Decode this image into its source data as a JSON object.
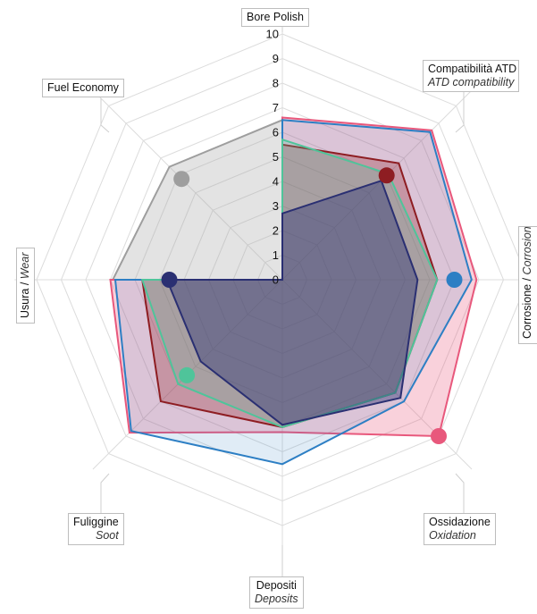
{
  "chart_data": {
    "type": "radar",
    "axes": [
      {
        "label": "Bore Polish",
        "sublabel": ""
      },
      {
        "label": "Compatibilità ATD",
        "sublabel": "ATD compatibility"
      },
      {
        "label": "Corrosione",
        "sublabel": "Corrosion"
      },
      {
        "label": "Ossidazione",
        "sublabel": "Oxidation"
      },
      {
        "label": "Depositi",
        "sublabel": "Deposits"
      },
      {
        "label": "Fuliggine",
        "sublabel": "Soot"
      },
      {
        "label": "Usura",
        "sublabel": "Wear"
      },
      {
        "label": "Fuel Economy",
        "sublabel": ""
      }
    ],
    "r_ticks": [
      "0",
      "1",
      "2",
      "3",
      "4",
      "5",
      "6",
      "7",
      "8",
      "9",
      "10"
    ],
    "r_range": [
      0,
      10
    ],
    "series": [
      {
        "color": "#9e9e9e",
        "fill": "rgba(170,170,170,0.33)",
        "values": [
          6.5,
          0,
          0,
          0,
          0,
          0,
          6.9,
          6.5
        ],
        "marker_axis": 7,
        "marker_value": 5.8
      },
      {
        "color": "#e8587c",
        "fill": "rgba(232,88,124,0.28)",
        "values": [
          6.6,
          8.6,
          7.9,
          9.0,
          6.2,
          8.8,
          7.0,
          0
        ],
        "marker_axis": 3,
        "marker_value": 9.0
      },
      {
        "color": "#2d7fc4",
        "fill": "rgba(45,127,196,0.15)",
        "values": [
          6.5,
          8.5,
          7.7,
          7.0,
          7.5,
          8.7,
          6.8,
          0
        ],
        "marker_axis": 2,
        "marker_value": 7.0
      },
      {
        "color": "#8e1d22",
        "fill": "rgba(142,29,34,0.28)",
        "values": [
          5.5,
          6.7,
          6.3,
          6.5,
          6.0,
          7.0,
          5.7,
          0
        ],
        "marker_axis": 1,
        "marker_value": 6.0
      },
      {
        "color": "#4fc49a",
        "fill": "rgba(79,196,154,0.25)",
        "values": [
          5.7,
          6.1,
          6.3,
          6.5,
          6.0,
          6.0,
          5.7,
          0
        ],
        "marker_axis": 5,
        "marker_value": 5.5
      },
      {
        "color": "#2a2f72",
        "fill": "rgba(42,47,114,0.42)",
        "values": [
          2.7,
          5.7,
          5.5,
          6.8,
          5.9,
          4.7,
          4.7,
          0
        ],
        "marker_axis": 6,
        "marker_value": 4.6
      }
    ]
  }
}
